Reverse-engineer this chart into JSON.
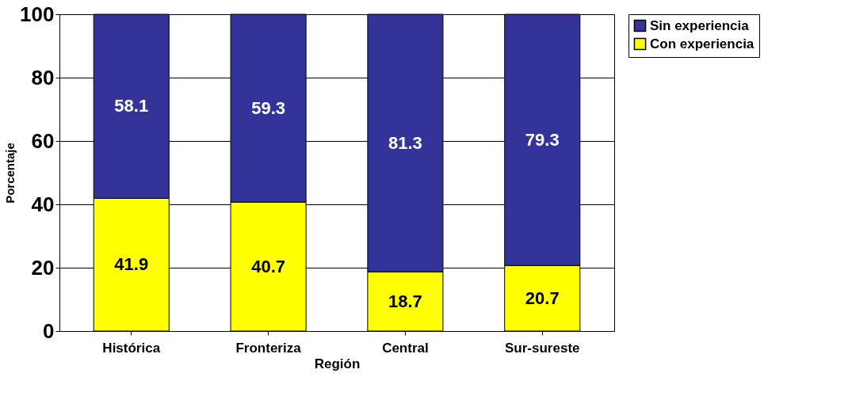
{
  "chart_data": {
    "type": "bar",
    "stacked": true,
    "xlabel": "Región",
    "ylabel": "Porcentaje",
    "categories": [
      "Histórica",
      "Fronteriza",
      "Central",
      "Sur-sureste"
    ],
    "series": [
      {
        "name": "Con experiencia",
        "color": "#ffff00",
        "values": [
          41.9,
          40.7,
          18.7,
          20.7
        ]
      },
      {
        "name": "Sin experiencia",
        "color": "#333399",
        "values": [
          58.1,
          59.3,
          81.3,
          79.3
        ]
      }
    ],
    "ylim": [
      0,
      100
    ],
    "yticks": [
      0,
      20,
      40,
      60,
      80,
      100
    ],
    "grid": "y",
    "legend": "right",
    "data_labels": true
  }
}
